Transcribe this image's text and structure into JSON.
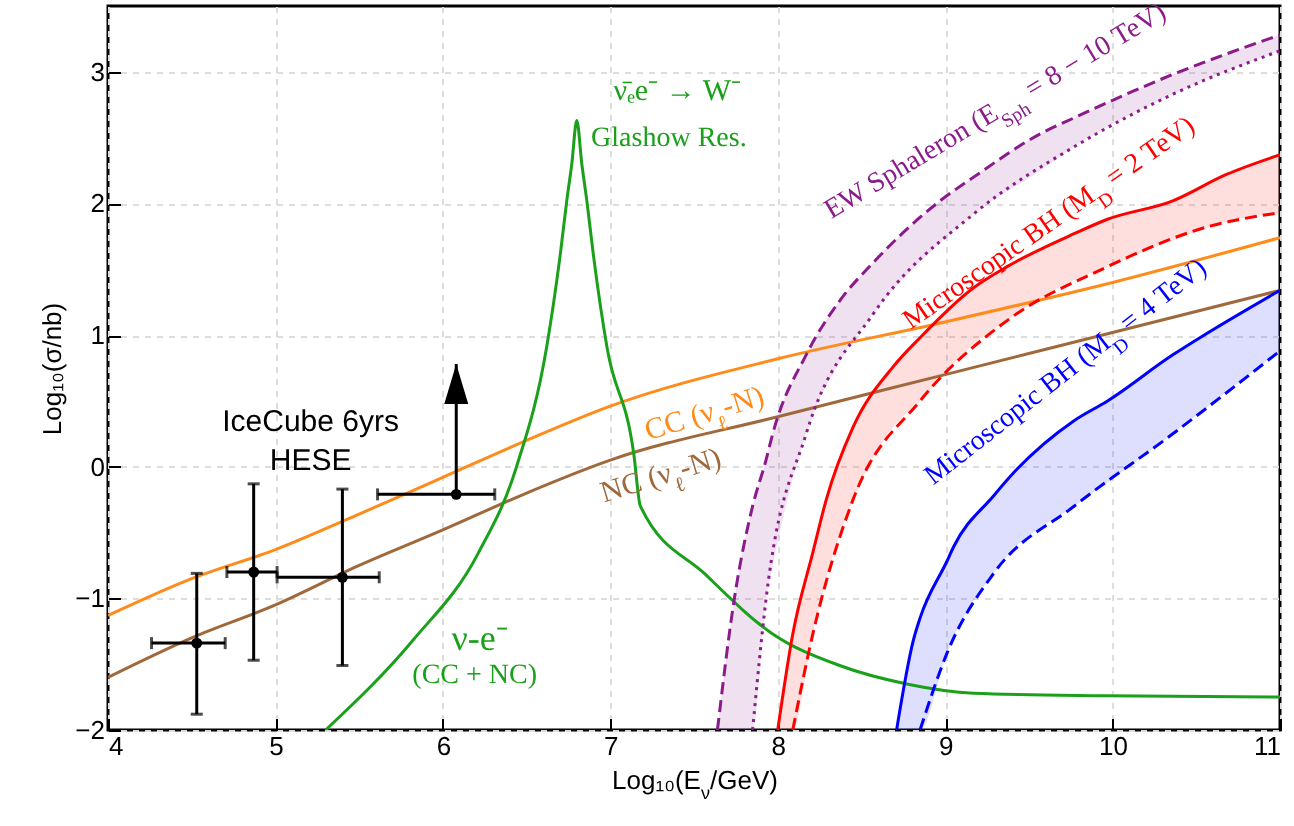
{
  "chart_data": {
    "type": "line",
    "xlabel": "Log₁₀(E$_{ν}$/GeV)",
    "ylabel": "Log₁₀(σ/nb)",
    "xlim": [
      4,
      11
    ],
    "ylim": [
      -2,
      3.5
    ],
    "xticks": [
      4,
      5,
      6,
      7,
      8,
      9,
      10,
      11
    ],
    "yticks": [
      -2,
      -1,
      0,
      1,
      2,
      3
    ],
    "grid": true,
    "series": [
      {
        "color": "#ff8c1a",
        "x": [
          4,
          4.5,
          5,
          5.5,
          6,
          6.5,
          7,
          8,
          9,
          10,
          11
        ],
        "values": [
          -1.13,
          -0.85,
          -0.63,
          -0.36,
          -0.08,
          0.2,
          0.46,
          0.82,
          1.1,
          1.4,
          1.74
        ]
      },
      {
        "color": "#a0693c",
        "x": [
          4,
          4.5,
          5,
          5.5,
          6,
          6.5,
          7,
          8,
          9,
          10,
          11
        ],
        "values": [
          -1.6,
          -1.3,
          -1.05,
          -0.75,
          -0.48,
          -0.2,
          0.05,
          0.38,
          0.7,
          1.02,
          1.34
        ]
      },
      {
        "color": "#1aa01a",
        "x": [
          5.3,
          5.82,
          6.21,
          6.44,
          6.62,
          6.7,
          6.74,
          6.77,
          6.8,
          6.83,
          6.86,
          6.9,
          6.98,
          7.14,
          7.18,
          7.57,
          7.97,
          8.37,
          8.77,
          9.17,
          9.96,
          11
        ],
        "values": [
          -2,
          -1.32,
          -0.66,
          0,
          0.91,
          1.6,
          2.02,
          2.3,
          2.63,
          2.3,
          2.02,
          1.6,
          0.91,
          0.1,
          -0.3,
          -0.82,
          -1.27,
          -1.51,
          -1.65,
          -1.72,
          -1.74,
          -1.75
        ]
      },
      {
        "color": "#8b1a8b",
        "line_style": "dashed",
        "x": [
          7.64,
          7.74,
          7.85,
          7.93,
          7.97,
          8.17,
          8.37,
          8.57,
          8.97,
          9.17,
          9.57,
          9.77,
          10.36,
          11
        ],
        "values": [
          -2,
          -1.01,
          -0.3,
          0.05,
          0.25,
          0.85,
          1.26,
          1.55,
          2.02,
          2.2,
          2.53,
          2.65,
          2.98,
          3.28
        ],
        "upper": [
          -2,
          -1.01,
          -0.3,
          0.05,
          0.25,
          0.85,
          1.26,
          1.55,
          2.02,
          2.2,
          2.53,
          2.65,
          2.98,
          3.28
        ],
        "lower": [
          -2,
          -2,
          -2,
          -1.01,
          -0.75,
          0.25,
          0.8,
          1.16,
          1.7,
          1.92,
          2.25,
          2.43,
          2.83,
          3.16
        ]
      },
      {
        "color": "#8b1a8b",
        "line_style": "dotted",
        "x": [
          7.85,
          7.93,
          8.17,
          8.57,
          9.17,
          9.77,
          10.36,
          11
        ],
        "values": [
          -2,
          -1.01,
          0.25,
          1.16,
          1.92,
          2.43,
          2.83,
          3.16
        ]
      },
      {
        "color": "#ff0000",
        "x": [
          8.0,
          8.09,
          8.21,
          8.29,
          8.45,
          8.69,
          8.85,
          9.17,
          9.37,
          9.77,
          9.97,
          10.36,
          10.68,
          11
        ],
        "values": [
          -2,
          -1.27,
          -0.65,
          -0.25,
          0.3,
          0.76,
          0.98,
          1.36,
          1.52,
          1.77,
          1.88,
          2.02,
          2.22,
          2.37
        ],
        "upper": [
          -2,
          -1.27,
          -0.65,
          -0.25,
          0.3,
          0.76,
          0.98,
          1.36,
          1.52,
          1.77,
          1.88,
          2.02,
          2.22,
          2.37
        ],
        "lower": [
          -2,
          -2,
          -1.27,
          -0.85,
          -0.25,
          0.3,
          0.5,
          0.93,
          1.11,
          1.42,
          1.52,
          1.72,
          1.86,
          1.93
        ]
      },
      {
        "color": "#ff0000",
        "line_style": "dashed",
        "x": [
          8.09,
          8.21,
          8.45,
          8.85,
          9.37,
          9.97,
          10.56,
          11
        ],
        "values": [
          -2,
          -1.27,
          -0.25,
          0.5,
          1.11,
          1.52,
          1.82,
          1.93
        ]
      },
      {
        "color": "#0000ff",
        "x": [
          8.71,
          8.81,
          8.85,
          9.01,
          9.05,
          9.29,
          9.37,
          9.77,
          9.97,
          10.36,
          10.56,
          11
        ],
        "values": [
          -2,
          -1.32,
          -1.15,
          -0.72,
          -0.61,
          -0.22,
          -0.1,
          0.35,
          0.5,
          0.85,
          1.01,
          1.34
        ],
        "upper": [
          -2,
          -1.32,
          -1.15,
          -0.72,
          -0.61,
          -0.22,
          -0.1,
          0.35,
          0.5,
          0.85,
          1.01,
          1.34
        ],
        "lower": [
          -2,
          -2,
          -2,
          -1.42,
          -1.3,
          -0.81,
          -0.68,
          -0.3,
          -0.12,
          0.25,
          0.45,
          0.88
        ]
      },
      {
        "color": "#0000ff",
        "line_style": "dashed",
        "x": [
          8.85,
          9.01,
          9.29,
          9.77,
          10.36,
          11
        ],
        "values": [
          -2,
          -1.42,
          -0.81,
          -0.3,
          0.25,
          0.88
        ]
      },
      {
        "type": "scatter",
        "color": "#000000",
        "marker": "circle",
        "x": [
          4.53,
          4.87,
          5.4,
          6.08
        ],
        "values": [
          -1.34,
          -0.8,
          -0.84,
          -0.21
        ],
        "errors": [
          [
            -1.88,
            -0.81
          ],
          [
            -1.47,
            -0.13
          ],
          [
            -1.51,
            -0.17
          ],
          [
            -0.21,
            0.78
          ]
        ],
        "xerrors": [
          [
            4.26,
            4.7
          ],
          [
            4.71,
            5.01
          ],
          [
            5.01,
            5.62
          ],
          [
            5.61,
            6.31
          ]
        ]
      }
    ],
    "annotations": [
      "ν̄ₑe⁻ → W⁻",
      "Glashow Res.",
      "CC (ν$_{ℓ}$-N)",
      "NC (ν$_{ℓ}$-N)",
      "ν-e⁻",
      "(CC + NC)",
      "IceCube 6yrs",
      "HESE",
      "EW Sphaleron (E$_{Sph}$ = 8 − 10 TeV)",
      "Microscopic BH (M$_{D}$ = 2 TeV)",
      "Microscopic BH (M$_{D}$ = 4 TeV)"
    ]
  }
}
